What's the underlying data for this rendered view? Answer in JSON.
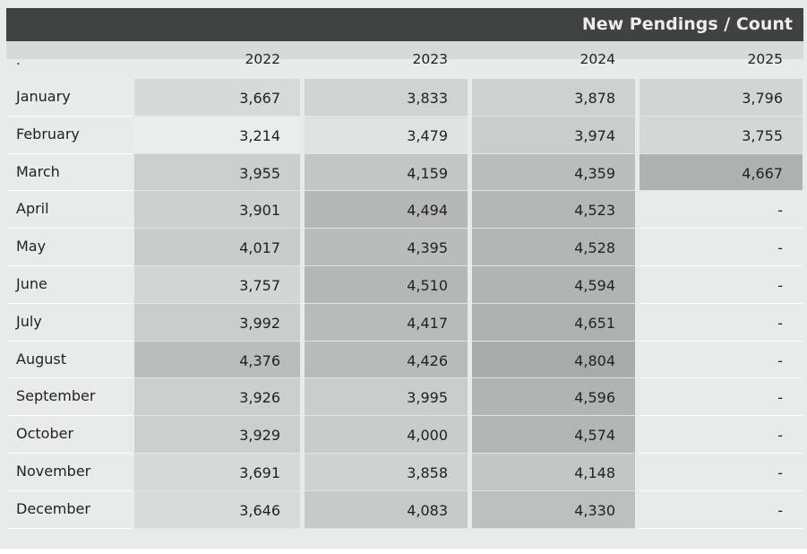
{
  "chart_data": {
    "type": "table",
    "title": "New Pendings / Count",
    "corner_label": ".",
    "columns": [
      "2022",
      "2023",
      "2024",
      "2025"
    ],
    "rows": [
      {
        "month": "January",
        "values": [
          "3,667",
          "3,833",
          "3,878",
          "3,796"
        ]
      },
      {
        "month": "February",
        "values": [
          "3,214",
          "3,479",
          "3,974",
          "3,755"
        ]
      },
      {
        "month": "March",
        "values": [
          "3,955",
          "4,159",
          "4,359",
          "4,667"
        ]
      },
      {
        "month": "April",
        "values": [
          "3,901",
          "4,494",
          "4,523",
          "-"
        ]
      },
      {
        "month": "May",
        "values": [
          "4,017",
          "4,395",
          "4,528",
          "-"
        ]
      },
      {
        "month": "June",
        "values": [
          "3,757",
          "4,510",
          "4,594",
          "-"
        ]
      },
      {
        "month": "July",
        "values": [
          "3,992",
          "4,417",
          "4,651",
          "-"
        ]
      },
      {
        "month": "August",
        "values": [
          "4,376",
          "4,426",
          "4,804",
          "-"
        ]
      },
      {
        "month": "September",
        "values": [
          "3,926",
          "3,995",
          "4,596",
          "-"
        ]
      },
      {
        "month": "October",
        "values": [
          "3,929",
          "4,000",
          "4,574",
          "-"
        ]
      },
      {
        "month": "November",
        "values": [
          "3,691",
          "3,858",
          "4,148",
          "-"
        ]
      },
      {
        "month": "December",
        "values": [
          "3,646",
          "4,083",
          "4,330",
          "-"
        ]
      }
    ],
    "heatmap_color_low": "#ebecec",
    "heatmap_color_high": "#a9aaaa"
  }
}
